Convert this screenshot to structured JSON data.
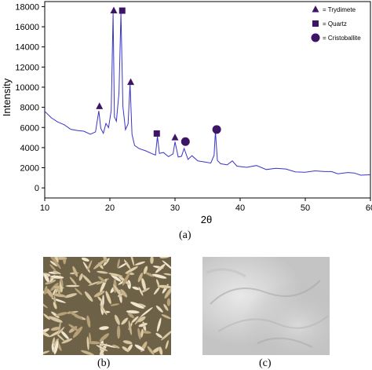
{
  "figure": {
    "caption_a": "(a)",
    "caption_b": "(b)",
    "caption_c": "(c)"
  },
  "chart_data": {
    "type": "line",
    "title": "",
    "xlabel": "2θ",
    "ylabel": "Intensity",
    "xlim": [
      10,
      60
    ],
    "ylim": [
      -1000,
      18500
    ],
    "x_ticks": [
      10,
      20,
      30,
      40,
      50,
      60
    ],
    "y_ticks": [
      0,
      2000,
      4000,
      6000,
      8000,
      10000,
      12000,
      14000,
      16000,
      18000
    ],
    "grid": false,
    "line_color": "#3a34c8",
    "series": [
      {
        "x": [
          10,
          11,
          12,
          13,
          14,
          15,
          16,
          17,
          17.8,
          18.3,
          18.6,
          19.0,
          19.4,
          19.8,
          20.2,
          20.5,
          20.7,
          21.0,
          21.4,
          21.7,
          22.0,
          22.4,
          22.8,
          23.1,
          23.4,
          23.8,
          24.5,
          25.5,
          26.5,
          27.0,
          27.3,
          27.6,
          28.2,
          29.0,
          29.7,
          30.0,
          30.5,
          31.0,
          31.4,
          32.0,
          32.6,
          33.5,
          34.5,
          35.5,
          36.0,
          36.2,
          36.5,
          37.0,
          38.0,
          38.8,
          39.5,
          41,
          42.5,
          44,
          45.5,
          47,
          48.5,
          50,
          51.5,
          53,
          54,
          55,
          56.5,
          57.5,
          58.5,
          59.5,
          60
        ],
        "y": [
          7600,
          7000,
          6500,
          6150,
          5900,
          5700,
          5550,
          5450,
          5600,
          7600,
          5800,
          5500,
          6400,
          5900,
          7800,
          17400,
          7000,
          6500,
          9500,
          17400,
          8000,
          5900,
          6400,
          10300,
          5200,
          4300,
          3900,
          3600,
          3500,
          3300,
          5100,
          3300,
          3600,
          3100,
          3300,
          4700,
          3100,
          3100,
          3800,
          2900,
          3200,
          2600,
          2700,
          2500,
          3200,
          5500,
          2800,
          2400,
          2200,
          2800,
          2200,
          2000,
          2100,
          1900,
          1950,
          1800,
          1700,
          1600,
          1650,
          1500,
          1700,
          1400,
          1450,
          1600,
          1300,
          1250,
          1300
        ]
      }
    ],
    "annotations": [
      {
        "marker": "triangle",
        "x": 18.4,
        "y": 8100
      },
      {
        "marker": "triangle",
        "x": 20.6,
        "y": 17600
      },
      {
        "marker": "square",
        "x": 21.9,
        "y": 17600
      },
      {
        "marker": "triangle",
        "x": 23.2,
        "y": 10500
      },
      {
        "marker": "square",
        "x": 27.2,
        "y": 5400
      },
      {
        "marker": "triangle",
        "x": 30.0,
        "y": 5000
      },
      {
        "marker": "circle",
        "x": 31.6,
        "y": 4600
      },
      {
        "marker": "circle",
        "x": 36.4,
        "y": 5800
      }
    ],
    "legend_position": "top-right",
    "legend": [
      {
        "marker": "triangle",
        "label": "= Trydimete"
      },
      {
        "marker": "square",
        "label": "= Quartz"
      },
      {
        "marker": "circle",
        "label": "= Cristoballite"
      }
    ],
    "marker_color": "#3d1566"
  }
}
